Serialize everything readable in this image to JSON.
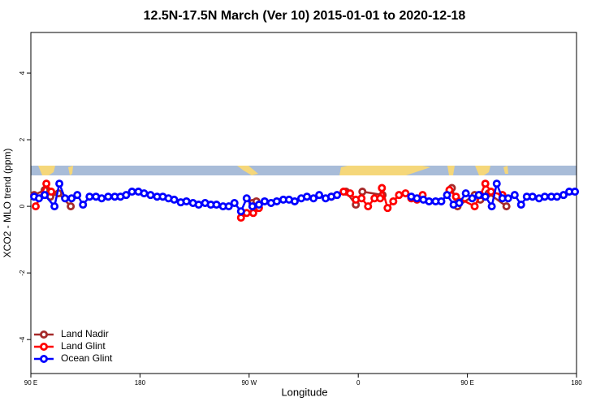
{
  "chart_data": {
    "type": "line",
    "title": "12.5N-17.5N March (Ver 10)   2015-01-01 to 2020-12-18",
    "xlabel": "Longitude",
    "ylabel": "XCO2 - MLO trend (ppm)",
    "xlim": [
      90,
      540
    ],
    "ylim": [
      -5.02,
      5.22
    ],
    "xticks": [
      {
        "value": 90,
        "label": "90 E"
      },
      {
        "value": 180,
        "label": "180"
      },
      {
        "value": 270,
        "label": "90 W"
      },
      {
        "value": 360,
        "label": "0"
      },
      {
        "value": 450,
        "label": "90 E"
      },
      {
        "value": 540,
        "label": "180"
      }
    ],
    "yticks": [
      -4,
      -2,
      0,
      2,
      4
    ],
    "legend": "bottomleft",
    "series": [
      {
        "name": "Land Nadir",
        "color": "#a52a2a",
        "x": [
          92.7,
          101.4,
          106.1,
          112.8,
          122.9,
          200,
          272.7,
          276.0,
          300,
          337.8,
          349.9,
          358.0,
          363.4,
          380.1,
          400,
          437.2,
          441.9,
          456.0,
          460.7,
          467.5,
          482.2
        ],
        "values": [
          0.34,
          0.49,
          0.29,
          0.39,
          0.0,
          null,
          0.1,
          0.15,
          null,
          0.29,
          0.44,
          0.05,
          0.44,
          0.34,
          null,
          0.55,
          0.0,
          0.34,
          0.2,
          0.39,
          0.0
        ]
      },
      {
        "name": "Land Glint",
        "color": "#ff0000",
        "x": [
          94.0,
          102.8,
          106.8,
          180,
          263.3,
          268.0,
          273.4,
          278.1,
          310,
          347.9,
          353.3,
          358.0,
          362.7,
          368.1,
          373.4,
          378.1,
          379.5,
          384.2,
          388.9,
          393.6,
          399.0,
          403.7,
          408.4,
          413.1,
          425,
          435.2,
          440.6,
          456.0,
          460.7,
          464.8,
          469.5,
          478.9
        ],
        "values": [
          0.0,
          0.68,
          0.44,
          null,
          -0.34,
          -0.2,
          -0.2,
          -0.05,
          null,
          0.44,
          0.39,
          0.2,
          0.24,
          0.0,
          0.24,
          0.24,
          0.55,
          -0.05,
          0.15,
          0.34,
          0.39,
          0.24,
          0.2,
          0.34,
          null,
          0.49,
          0.29,
          0.0,
          0.34,
          0.68,
          0.44,
          0.34
        ]
      },
      {
        "name": "Ocean Glint",
        "color": "#0000ff",
        "x": [
          92.7,
          96.7,
          101.4,
          109.5,
          113.5,
          118.2,
          123.6,
          128.3,
          133.0,
          138.4,
          143.7,
          148.4,
          153.8,
          159.2,
          163.9,
          168.6,
          173.4,
          178.7,
          183.4,
          188.7,
          194.1,
          198.8,
          203.5,
          208.2,
          213.6,
          218.3,
          223.7,
          228.4,
          233.7,
          238.4,
          243.1,
          248.5,
          253.2,
          257.9,
          263.3,
          268.0,
          272.7,
          278.1,
          282.8,
          288.1,
          292.8,
          298.2,
          302.9,
          307.6,
          313.0,
          317.7,
          323.1,
          327.8,
          333.1,
          337.8,
          342.5,
          370,
          403.7,
          408.4,
          413.7,
          418.4,
          423.8,
          428.5,
          433.2,
          438.6,
          443.3,
          448.7,
          454.0,
          459.4,
          464.8,
          470.1,
          474.2,
          478.9,
          483.6,
          489.0,
          494.3,
          499.0,
          503.7,
          509.1,
          513.8,
          519.2,
          523.9,
          529.3,
          534.0,
          538.7
        ],
        "values": [
          0.29,
          0.24,
          0.34,
          0.0,
          0.68,
          0.24,
          0.24,
          0.34,
          0.05,
          0.29,
          0.29,
          0.24,
          0.29,
          0.29,
          0.29,
          0.34,
          0.44,
          0.44,
          0.39,
          0.34,
          0.29,
          0.29,
          0.24,
          0.2,
          0.12,
          0.15,
          0.1,
          0.05,
          0.1,
          0.05,
          0.05,
          0.0,
          0.0,
          0.1,
          -0.15,
          0.24,
          0.0,
          0.05,
          0.15,
          0.1,
          0.15,
          0.2,
          0.2,
          0.15,
          0.24,
          0.29,
          0.24,
          0.34,
          0.24,
          0.29,
          0.34,
          null,
          0.29,
          0.24,
          0.2,
          0.15,
          0.15,
          0.15,
          0.34,
          0.05,
          0.1,
          0.39,
          0.24,
          0.34,
          0.29,
          0.0,
          0.68,
          0.24,
          0.24,
          0.34,
          0.05,
          0.29,
          0.29,
          0.24,
          0.29,
          0.29,
          0.29,
          0.34,
          0.44,
          0.44
        ]
      }
    ]
  }
}
